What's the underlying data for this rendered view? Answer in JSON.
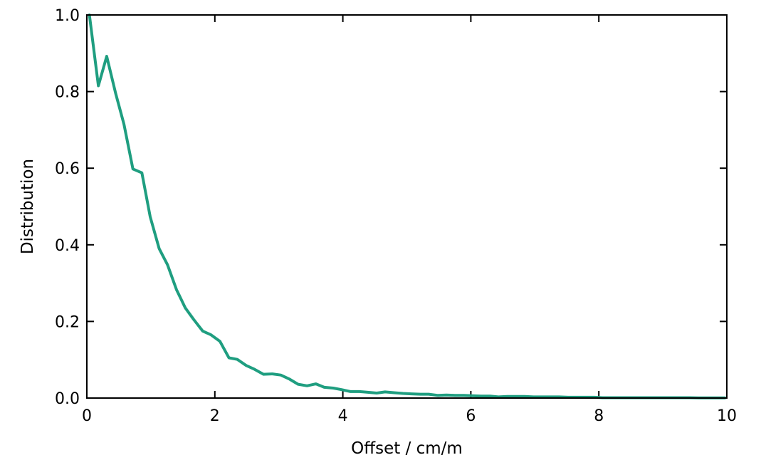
{
  "chart_data": {
    "type": "line",
    "title": "",
    "xlabel": "Offset / cm/m",
    "ylabel": "Distribution",
    "xlim": [
      0,
      10
    ],
    "ylim": [
      0,
      1.0
    ],
    "xticks": [
      0,
      2,
      4,
      6,
      8,
      10
    ],
    "xtick_labels": [
      "0",
      "2",
      "4",
      "6",
      "8",
      "10"
    ],
    "yticks": [
      0.0,
      0.2,
      0.4,
      0.6,
      0.8,
      1.0
    ],
    "ytick_labels": [
      "0.0",
      "0.2",
      "0.4",
      "0.6",
      "0.8",
      "1.0"
    ],
    "grid": false,
    "legend": "none",
    "series": [
      {
        "color": "#1f9e80",
        "x": [
          0.04,
          0.18,
          0.31,
          0.45,
          0.58,
          0.72,
          0.86,
          0.99,
          1.13,
          1.26,
          1.4,
          1.54,
          1.67,
          1.81,
          1.94,
          2.08,
          2.22,
          2.35,
          2.49,
          2.62,
          2.76,
          2.9,
          3.03,
          3.17,
          3.3,
          3.44,
          3.58,
          3.71,
          3.85,
          3.98,
          4.12,
          4.26,
          4.39,
          4.53,
          4.66,
          4.8,
          4.94,
          5.07,
          5.21,
          5.34,
          5.48,
          5.62,
          5.75,
          5.89,
          6.02,
          6.16,
          6.3,
          6.43,
          6.57,
          6.7,
          6.84,
          6.98,
          7.11,
          7.25,
          7.38,
          7.52,
          7.66,
          7.79,
          7.93,
          8.06,
          8.2,
          8.34,
          8.47,
          8.61,
          8.74,
          8.88,
          9.02,
          9.15,
          9.29,
          9.42,
          9.56,
          9.7,
          9.83,
          9.97
        ],
        "y": [
          1.0,
          0.815,
          0.892,
          0.795,
          0.715,
          0.598,
          0.588,
          0.473,
          0.39,
          0.348,
          0.283,
          0.235,
          0.205,
          0.175,
          0.165,
          0.148,
          0.105,
          0.101,
          0.085,
          0.075,
          0.062,
          0.063,
          0.06,
          0.049,
          0.036,
          0.032,
          0.037,
          0.028,
          0.026,
          0.022,
          0.017,
          0.017,
          0.015,
          0.013,
          0.016,
          0.014,
          0.012,
          0.011,
          0.01,
          0.01,
          0.007,
          0.008,
          0.007,
          0.007,
          0.006,
          0.005,
          0.005,
          0.003,
          0.004,
          0.004,
          0.004,
          0.003,
          0.003,
          0.003,
          0.003,
          0.002,
          0.002,
          0.002,
          0.002,
          0.001,
          0.001,
          0.001,
          0.001,
          0.001,
          0.001,
          0.001,
          0.001,
          0.001,
          0.001,
          0.001,
          0.0005,
          0.0005,
          0.0005,
          0.0005
        ]
      }
    ]
  }
}
